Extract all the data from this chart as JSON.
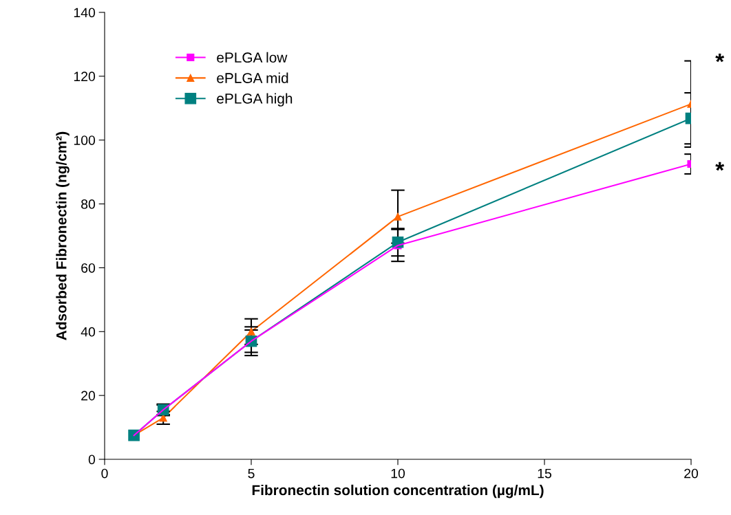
{
  "chart_data": {
    "type": "line",
    "xlabel": "Fibronectin solution concentration (µg/mL)",
    "ylabel": "Adsorbed Fibronectin (ng/cm²)",
    "x": [
      1,
      2,
      5,
      10,
      20
    ],
    "series": [
      {
        "name": "ePLGA low",
        "color": "#ff00ff",
        "marker": "square",
        "values": [
          7.5,
          15.5,
          37,
          67,
          92.5
        ],
        "errors": [
          null,
          1.5,
          3.5,
          5,
          3.1
        ]
      },
      {
        "name": "ePLGA mid",
        "color": "#ff6600",
        "marker": "triangle",
        "values": [
          7.5,
          13,
          40,
          76,
          111.3
        ],
        "errors": [
          null,
          2,
          4,
          8.3,
          13.5
        ]
      },
      {
        "name": "ePLGA high",
        "color": "#008080",
        "marker": "square",
        "values": [
          7.5,
          15.5,
          37,
          68,
          106.8
        ],
        "errors": [
          null,
          1.8,
          4.5,
          4.3,
          8
        ]
      }
    ],
    "xlim": [
      0,
      20
    ],
    "xticks": [
      0,
      5,
      10,
      15,
      20
    ],
    "ylim": [
      0,
      140
    ],
    "yticks": [
      0,
      20,
      40,
      60,
      80,
      100,
      120,
      140
    ],
    "grid": false,
    "legend": "top left",
    "line_style": "solid",
    "annotations": [
      {
        "text": "*",
        "x": 20,
        "y": 124
      },
      {
        "text": "*",
        "x": 20,
        "y": 90
      }
    ]
  }
}
